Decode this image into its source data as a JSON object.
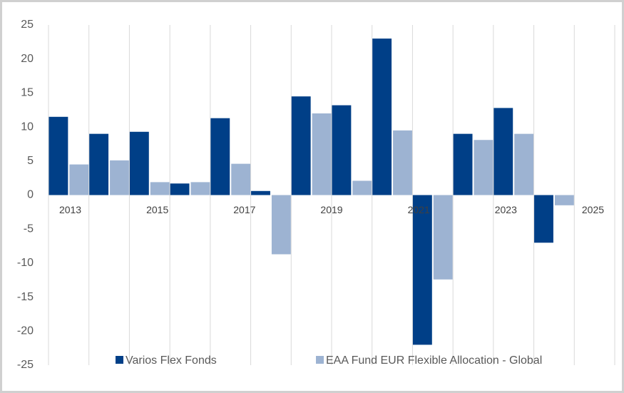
{
  "chart_data": {
    "type": "bar",
    "categories": [
      "2013",
      null,
      "2015",
      null,
      "2017",
      null,
      "2019",
      null,
      "2021",
      null,
      "2023",
      null,
      "2025"
    ],
    "series": [
      {
        "name": "Varios Flex Fonds",
        "color": "#003f87",
        "values": [
          11.5,
          9,
          9.3,
          1.7,
          11.3,
          0.6,
          14.5,
          13.2,
          23,
          -22,
          9,
          12.8,
          -7
        ]
      },
      {
        "name": "EAA Fund EUR Flexible Allocation - Global",
        "color": "#9db3d2",
        "values": [
          4.5,
          5.1,
          1.9,
          1.9,
          4.6,
          -8.7,
          12,
          2.1,
          9.5,
          -12.4,
          8.1,
          9,
          -1.5
        ]
      }
    ],
    "ylim": [
      -25,
      25
    ],
    "yticks": [
      -25,
      -20,
      -15,
      -10,
      -5,
      0,
      5,
      10,
      15,
      20,
      25
    ],
    "grid": "vertical",
    "legend": "bottom"
  }
}
